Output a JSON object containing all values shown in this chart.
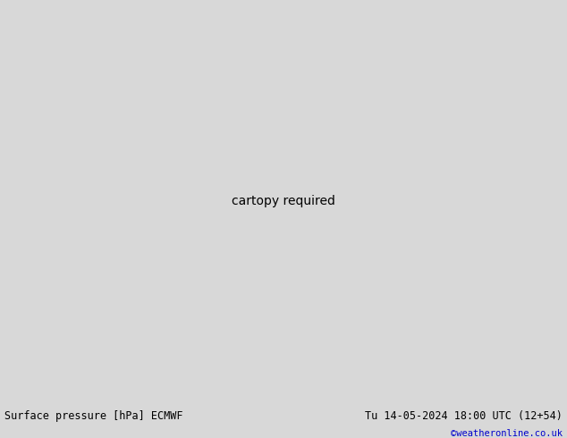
{
  "title_left": "Surface pressure [hPa] ECMWF",
  "title_right": "Tu 14-05-2024 18:00 UTC (12+54)",
  "credit": "©weatheronline.co.uk",
  "land_color": "#c8e6a0",
  "sea_color": "#d8d8d8",
  "border_color": "#888888",
  "figsize": [
    6.34,
    4.9
  ],
  "dpi": 100,
  "bottom_bar_color": "#ffffff",
  "font_color": "#000000",
  "credit_color": "#0000cc",
  "extent": [
    -20,
    70,
    -40,
    40
  ],
  "map_extent_lon_min": -20,
  "map_extent_lon_max": 70,
  "map_extent_lat_min": -40,
  "map_extent_lat_max": 40
}
